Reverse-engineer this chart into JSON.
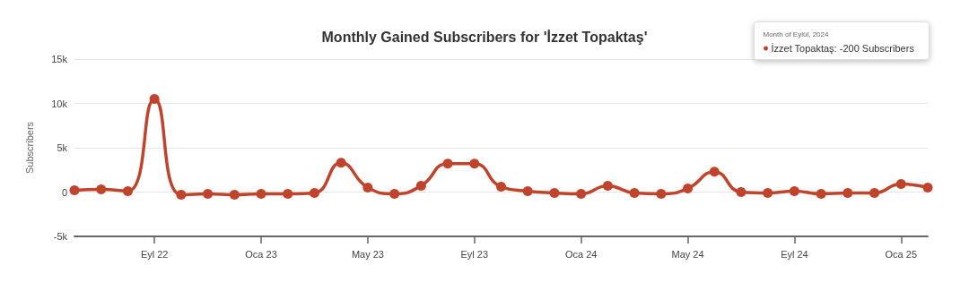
{
  "chart_data": {
    "type": "line",
    "title": "Monthly Gained Subscribers for 'İzzet Topaktaş'",
    "ylabel": "Subscribers",
    "categories": [
      null,
      null,
      null,
      "Eyl 22",
      null,
      null,
      null,
      "Oca 23",
      null,
      null,
      null,
      "May 23",
      null,
      null,
      null,
      "Eyl 23",
      null,
      null,
      null,
      "Oca 24",
      null,
      null,
      null,
      "May 24",
      null,
      null,
      null,
      "Eyl 24",
      null,
      null,
      null,
      "Oca 25",
      null
    ],
    "series": [
      {
        "color": "#c0442c",
        "values": [
          200,
          300,
          100,
          10500,
          -300,
          -200,
          -300,
          -200,
          -200,
          -100,
          3300,
          500,
          -200,
          700,
          3200,
          3200,
          600,
          100,
          -100,
          -200,
          700,
          -100,
          -200,
          400,
          2300,
          0,
          -100,
          100,
          -200,
          -100,
          -100,
          900,
          500
        ]
      }
    ],
    "ylim": [
      -5000,
      15000
    ],
    "yticks": [
      {
        "value": -5000,
        "label": "-5k"
      },
      0,
      {
        "value": 5000,
        "label": "5k"
      },
      {
        "value": 10000,
        "label": "10k"
      },
      {
        "value": 15000,
        "label": "15k"
      }
    ],
    "annotations": [
      "Month of Eylül, 2024",
      "İzzet Topaktaş: -200 Subscribers"
    ],
    "grid": "y",
    "marker": "circle",
    "line_style": "solid"
  }
}
